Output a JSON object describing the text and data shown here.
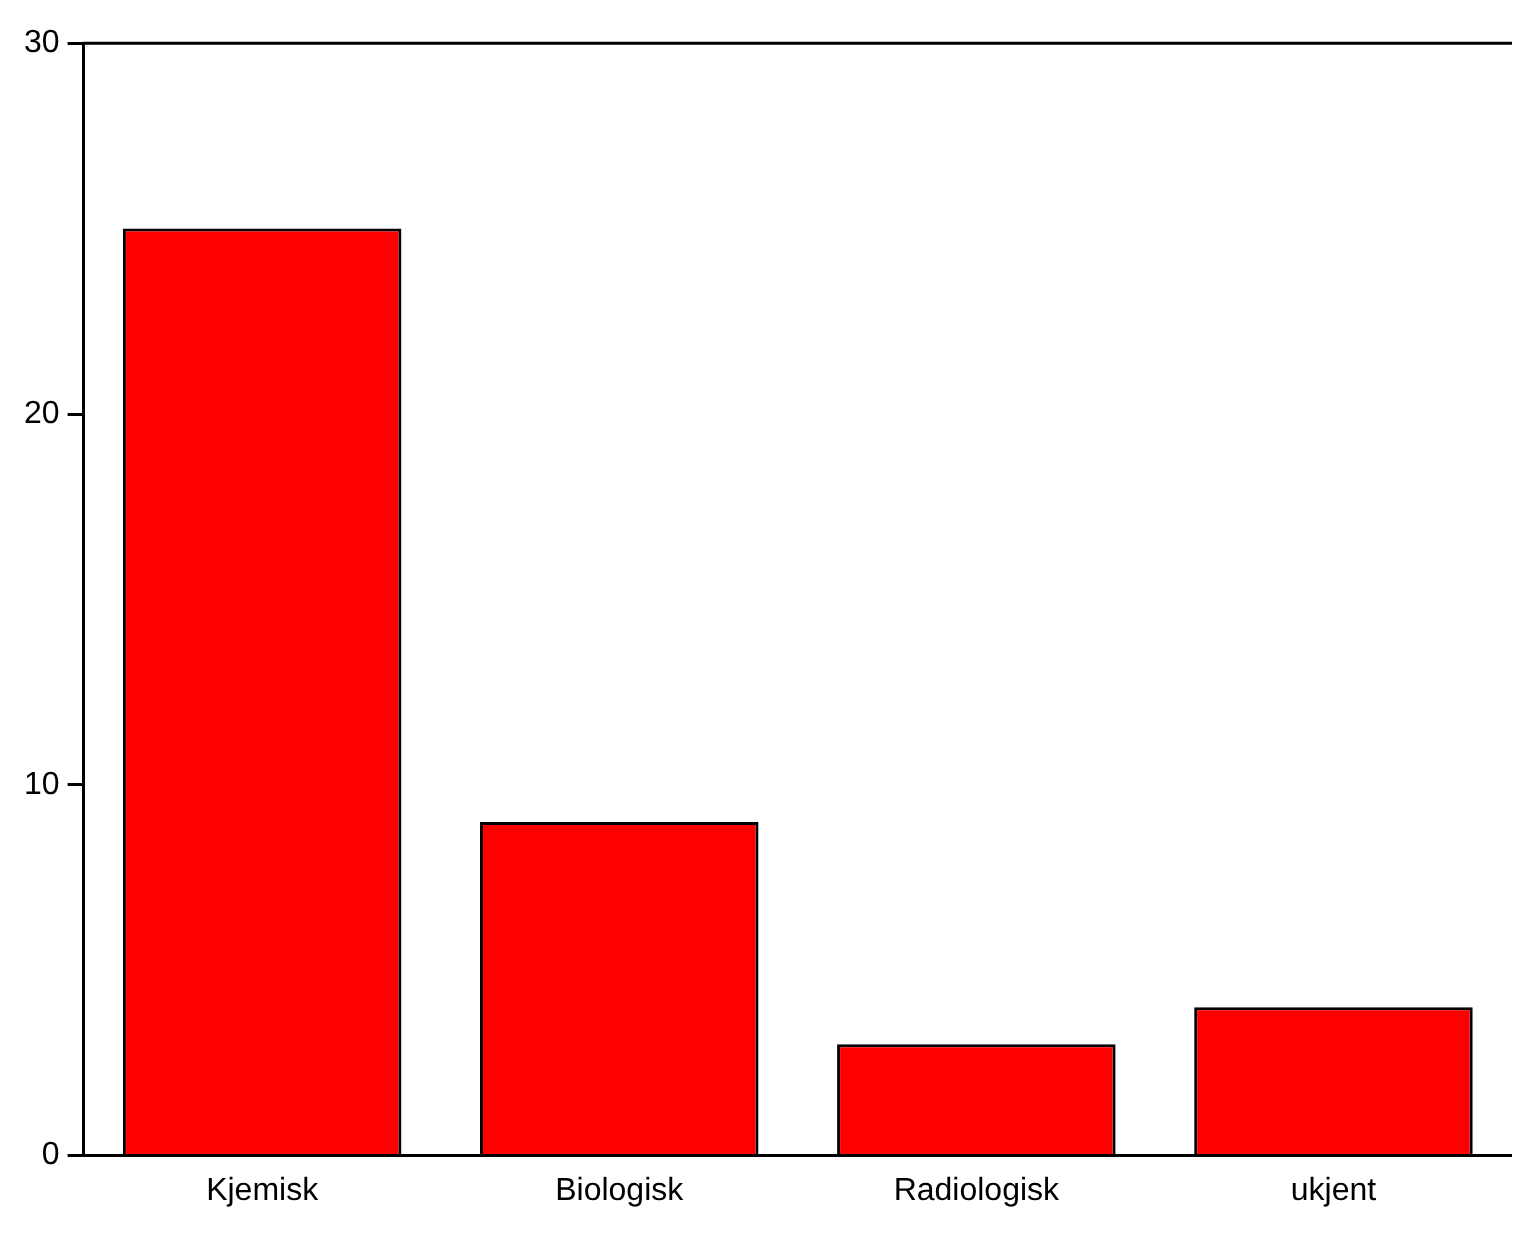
{
  "chart_data": {
    "type": "bar",
    "categories": [
      "Kjemisk",
      "Biologisk",
      "Radiologisk",
      "ukjent"
    ],
    "values": [
      25,
      9,
      3,
      4
    ],
    "color": "#ff0000",
    "ylim": [
      0,
      30
    ],
    "yticks": [
      0,
      10,
      20,
      30
    ],
    "grid": false,
    "legend": false
  }
}
